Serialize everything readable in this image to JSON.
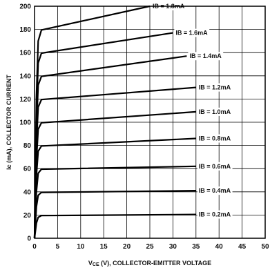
{
  "chart_data": {
    "type": "line",
    "title": "",
    "xlabel": "VCE (V), COLLECTOR-EMITTER VOLTAGE",
    "xlabel_main": "V",
    "xlabel_sub": "CE",
    "xlabel_rest": " (V), COLLECTOR-EMITTER VOLTAGE",
    "ylabel": "Ic (mA), COLLECTOR CURRENT",
    "xlim": [
      0,
      50
    ],
    "ylim": [
      0,
      200
    ],
    "xticks": [
      "0",
      "5",
      "10",
      "15",
      "20",
      "25",
      "30",
      "35",
      "40",
      "45",
      "50"
    ],
    "yticks": [
      "0",
      "20",
      "40",
      "60",
      "80",
      "100",
      "120",
      "140",
      "160",
      "180",
      "200"
    ],
    "grid": true,
    "series": [
      {
        "name": "IB = 0.2mA",
        "label": "IB = 0.2mA",
        "x": [
          0,
          0.4,
          0.8,
          1.5,
          35
        ],
        "y": [
          0,
          13,
          18,
          19.5,
          20.5
        ]
      },
      {
        "name": "IB = 0.4mA",
        "label": "IB = 0.4mA",
        "x": [
          0,
          0.4,
          0.8,
          1.5,
          35
        ],
        "y": [
          0,
          27,
          37,
          39.5,
          41
        ]
      },
      {
        "name": "IB = 0.6mA",
        "label": "IB = 0.6mA",
        "x": [
          0,
          0.4,
          0.8,
          1.5,
          35
        ],
        "y": [
          0,
          40,
          56,
          59.5,
          62
        ]
      },
      {
        "name": "IB = 0.8mA",
        "label": "IB = 0.8mA",
        "x": [
          0,
          0.4,
          0.8,
          1.5,
          35
        ],
        "y": [
          0,
          54,
          75,
          79.5,
          86
        ]
      },
      {
        "name": "IB = 1.0mA",
        "label": "IB = 1.0mA",
        "x": [
          0,
          0.4,
          0.8,
          1.5,
          35
        ],
        "y": [
          0,
          67,
          94,
          99.5,
          109
        ]
      },
      {
        "name": "IB = 1.2mA",
        "label": "IB = 1.2mA",
        "x": [
          0,
          0.4,
          0.8,
          1.5,
          35
        ],
        "y": [
          0,
          81,
          113,
          119.5,
          130
        ]
      },
      {
        "name": "IB = 1.4mA",
        "label": "IB = 1.4mA",
        "x": [
          0,
          0.4,
          0.8,
          1.5,
          33
        ],
        "y": [
          0,
          94,
          132,
          139.5,
          157
        ]
      },
      {
        "name": "IB = 1.6mA",
        "label": "IB = 1.6mA",
        "x": [
          0,
          0.4,
          0.8,
          1.5,
          30
        ],
        "y": [
          0,
          108,
          151,
          159.5,
          177
        ]
      },
      {
        "name": "IB = 1.8mA",
        "label": "IB = 1.8mA",
        "x": [
          0,
          0.4,
          0.8,
          1.5,
          25
        ],
        "y": [
          0,
          121,
          170,
          179.5,
          200
        ]
      }
    ]
  }
}
